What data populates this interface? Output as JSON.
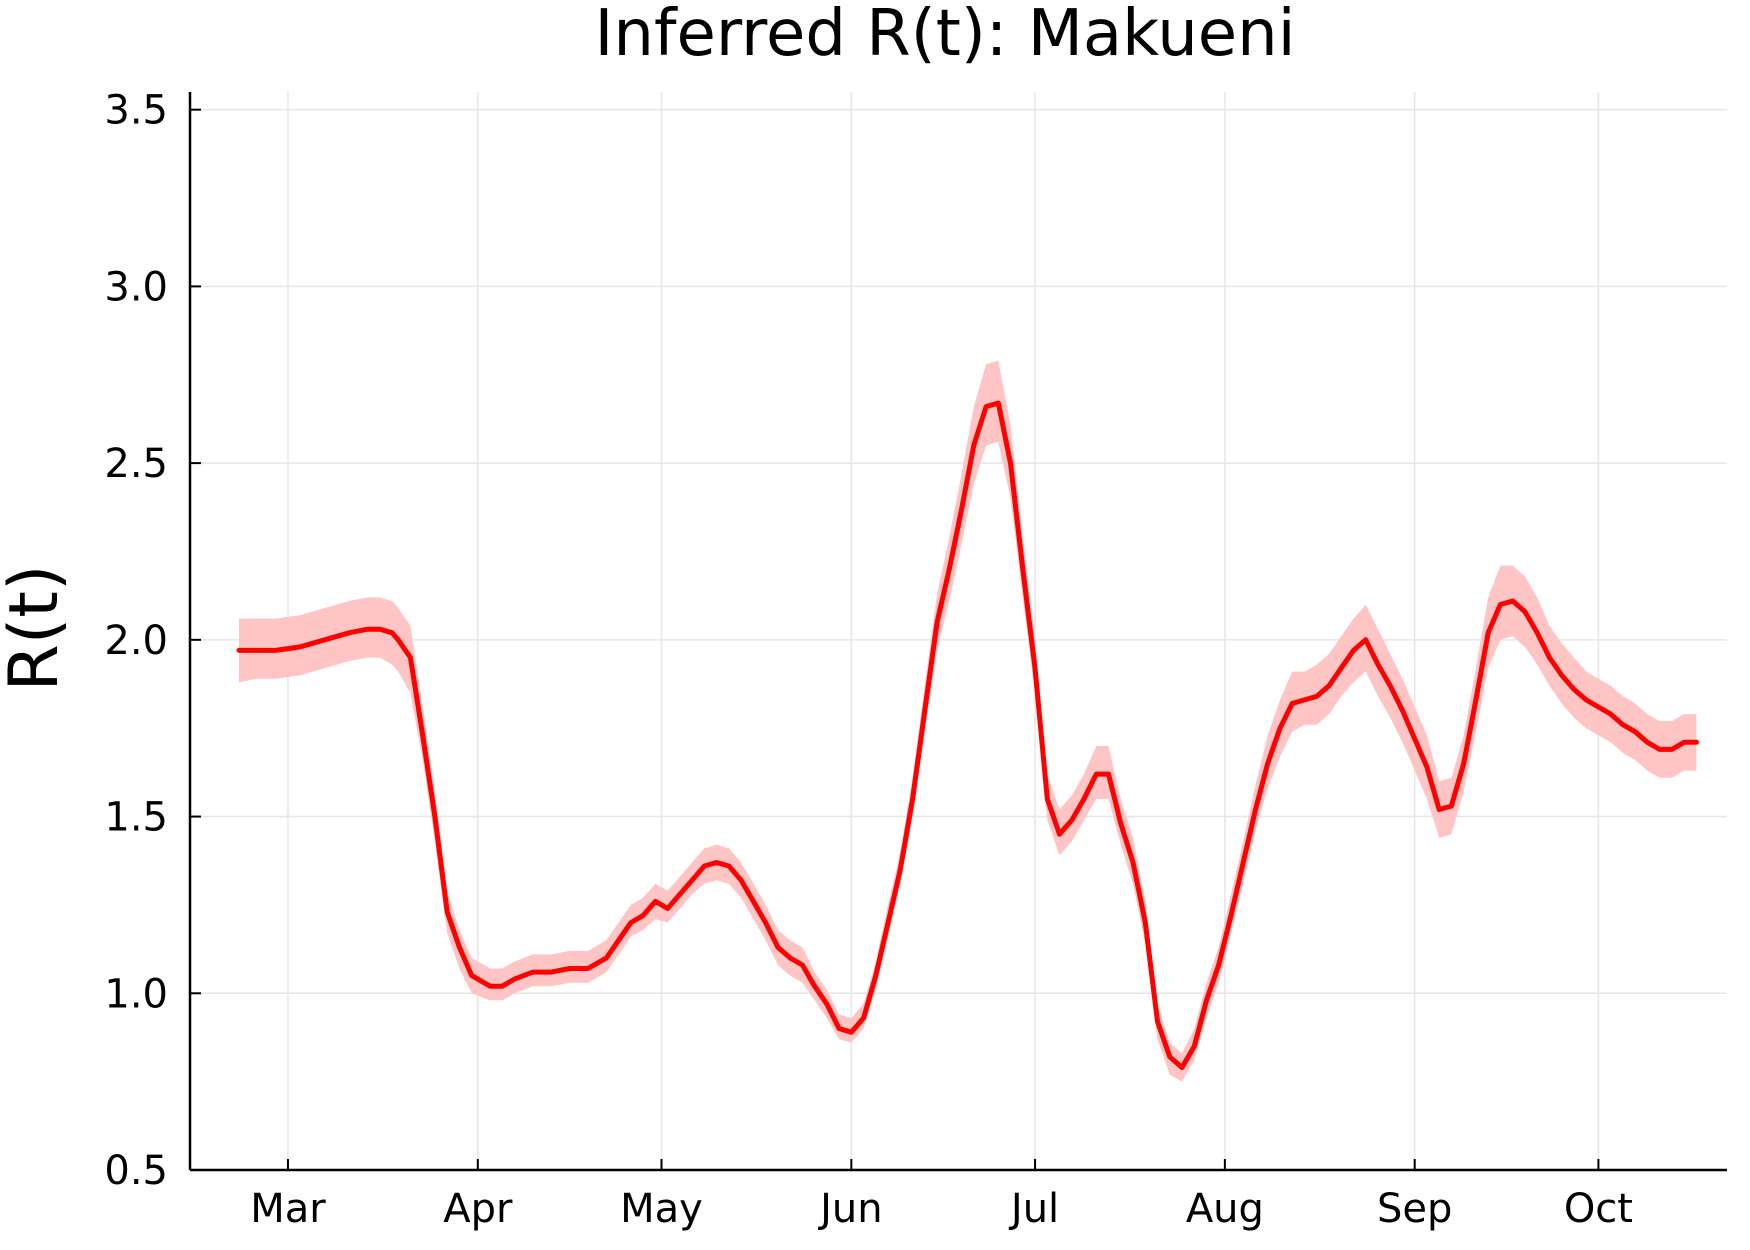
{
  "colors": {
    "line": "#ff0000",
    "band": "#ffc4c4",
    "grid": "#e6e6e6",
    "axis": "#000000"
  },
  "chart_data": {
    "type": "line",
    "title": "Inferred R(t): Makueni",
    "xlabel": "",
    "ylabel": "R(t)",
    "ylim": [
      0.5,
      3.55
    ],
    "xlim": [
      -16,
      235
    ],
    "grid": true,
    "legend": "none",
    "x_unit": "days since 1 Mar",
    "x_ticks": [
      {
        "label": "Mar",
        "value": 0
      },
      {
        "label": "Apr",
        "value": 31
      },
      {
        "label": "May",
        "value": 61
      },
      {
        "label": "Jun",
        "value": 92
      },
      {
        "label": "Jul",
        "value": 122
      },
      {
        "label": "Aug",
        "value": 153
      },
      {
        "label": "Sep",
        "value": 184
      },
      {
        "label": "Oct",
        "value": 214
      }
    ],
    "y_ticks": [
      {
        "label": "0.5",
        "value": 0.5
      },
      {
        "label": "1.0",
        "value": 1.0
      },
      {
        "label": "1.5",
        "value": 1.5
      },
      {
        "label": "2.0",
        "value": 2.0
      },
      {
        "label": "2.5",
        "value": 2.5
      },
      {
        "label": "3.0",
        "value": 3.0
      },
      {
        "label": "3.5",
        "value": 3.5
      }
    ],
    "series": [
      {
        "name": "R(t)",
        "x": [
          -8,
          -5,
          -2,
          2,
          6,
          10,
          13,
          15,
          17,
          18,
          20,
          22,
          24,
          26,
          28,
          30,
          33,
          35,
          37,
          40,
          43,
          46,
          49,
          52,
          54,
          56,
          58,
          60,
          62,
          64,
          66,
          68,
          70,
          72,
          74,
          76,
          78,
          80,
          82,
          84,
          86,
          88,
          90,
          92,
          94,
          96,
          98,
          100,
          102,
          104,
          106,
          108,
          110,
          112,
          114,
          116,
          118,
          120,
          122,
          124,
          126,
          128,
          130,
          132,
          134,
          136,
          138,
          140,
          142,
          144,
          146,
          148,
          150,
          152,
          154,
          156,
          158,
          160,
          162,
          164,
          166,
          168,
          170,
          172,
          174,
          176,
          178,
          180,
          182,
          184,
          186,
          188,
          190,
          192,
          194,
          196,
          198,
          200,
          202,
          204,
          206,
          208,
          210,
          212,
          214,
          216,
          218,
          220,
          222,
          224,
          226,
          228,
          230
        ],
        "y": [
          1.97,
          1.97,
          1.97,
          1.98,
          2.0,
          2.02,
          2.03,
          2.03,
          2.02,
          2.0,
          1.95,
          1.73,
          1.5,
          1.23,
          1.13,
          1.05,
          1.02,
          1.02,
          1.04,
          1.06,
          1.06,
          1.07,
          1.07,
          1.1,
          1.15,
          1.2,
          1.22,
          1.26,
          1.24,
          1.28,
          1.32,
          1.36,
          1.37,
          1.36,
          1.32,
          1.26,
          1.2,
          1.13,
          1.1,
          1.08,
          1.02,
          0.97,
          0.9,
          0.89,
          0.93,
          1.05,
          1.2,
          1.35,
          1.55,
          1.8,
          2.05,
          2.2,
          2.37,
          2.55,
          2.66,
          2.67,
          2.5,
          2.2,
          1.92,
          1.55,
          1.45,
          1.49,
          1.55,
          1.62,
          1.62,
          1.48,
          1.37,
          1.2,
          0.92,
          0.82,
          0.79,
          0.85,
          0.98,
          1.08,
          1.22,
          1.37,
          1.52,
          1.65,
          1.75,
          1.82,
          1.83,
          1.84,
          1.87,
          1.92,
          1.97,
          2.0,
          1.93,
          1.87,
          1.8,
          1.72,
          1.64,
          1.52,
          1.53,
          1.65,
          1.83,
          2.02,
          2.1,
          2.11,
          2.08,
          2.02,
          1.95,
          1.9,
          1.86,
          1.83,
          1.81,
          1.79,
          1.76,
          1.74,
          1.71,
          1.69,
          1.69,
          1.71,
          1.71
        ],
        "lower": [
          1.88,
          1.89,
          1.89,
          1.9,
          1.92,
          1.94,
          1.95,
          1.95,
          1.93,
          1.91,
          1.85,
          1.66,
          1.43,
          1.17,
          1.07,
          1.0,
          0.98,
          0.98,
          1.0,
          1.02,
          1.02,
          1.03,
          1.03,
          1.06,
          1.11,
          1.16,
          1.18,
          1.21,
          1.2,
          1.24,
          1.28,
          1.31,
          1.32,
          1.31,
          1.27,
          1.21,
          1.15,
          1.08,
          1.05,
          1.03,
          0.98,
          0.93,
          0.87,
          0.86,
          0.9,
          1.01,
          1.16,
          1.31,
          1.5,
          1.74,
          1.97,
          2.11,
          2.27,
          2.44,
          2.55,
          2.56,
          2.4,
          2.12,
          1.85,
          1.49,
          1.39,
          1.43,
          1.49,
          1.55,
          1.55,
          1.42,
          1.31,
          1.14,
          0.87,
          0.77,
          0.75,
          0.81,
          0.93,
          1.03,
          1.17,
          1.31,
          1.46,
          1.58,
          1.67,
          1.74,
          1.76,
          1.76,
          1.79,
          1.84,
          1.88,
          1.91,
          1.84,
          1.78,
          1.71,
          1.63,
          1.55,
          1.44,
          1.45,
          1.57,
          1.74,
          1.92,
          2.0,
          2.01,
          1.98,
          1.93,
          1.87,
          1.82,
          1.78,
          1.75,
          1.73,
          1.71,
          1.68,
          1.66,
          1.63,
          1.61,
          1.61,
          1.63,
          1.63
        ],
        "upper": [
          2.06,
          2.06,
          2.06,
          2.07,
          2.09,
          2.11,
          2.12,
          2.12,
          2.11,
          2.09,
          2.04,
          1.81,
          1.57,
          1.29,
          1.18,
          1.1,
          1.07,
          1.07,
          1.09,
          1.11,
          1.11,
          1.12,
          1.12,
          1.15,
          1.2,
          1.25,
          1.27,
          1.31,
          1.29,
          1.33,
          1.37,
          1.41,
          1.42,
          1.41,
          1.37,
          1.31,
          1.25,
          1.18,
          1.15,
          1.13,
          1.06,
          1.01,
          0.94,
          0.93,
          0.97,
          1.09,
          1.25,
          1.4,
          1.61,
          1.87,
          2.13,
          2.29,
          2.47,
          2.66,
          2.78,
          2.79,
          2.61,
          2.29,
          2.0,
          1.62,
          1.52,
          1.56,
          1.62,
          1.7,
          1.7,
          1.55,
          1.44,
          1.26,
          0.97,
          0.86,
          0.83,
          0.9,
          1.03,
          1.13,
          1.28,
          1.43,
          1.59,
          1.73,
          1.83,
          1.91,
          1.91,
          1.93,
          1.96,
          2.01,
          2.06,
          2.1,
          2.03,
          1.96,
          1.89,
          1.81,
          1.73,
          1.6,
          1.61,
          1.73,
          1.92,
          2.12,
          2.21,
          2.21,
          2.18,
          2.12,
          2.04,
          1.99,
          1.95,
          1.91,
          1.89,
          1.87,
          1.84,
          1.82,
          1.79,
          1.77,
          1.77,
          1.79,
          1.79
        ]
      }
    ]
  }
}
